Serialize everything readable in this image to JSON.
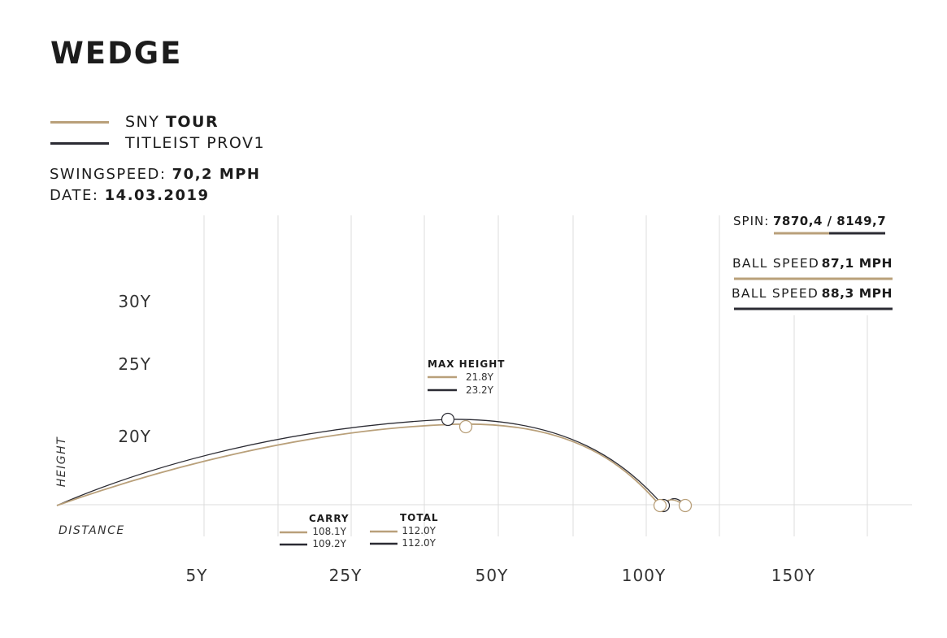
{
  "title": "WEDGE",
  "legend": [
    {
      "prefix": "SNY",
      "bold": "TOUR",
      "color": "#b9a07a"
    },
    {
      "prefix": "TITLEIST PROV1",
      "bold": "",
      "color": "#2b2b33"
    }
  ],
  "swingspeed": {
    "label": "SWINGSPEED:",
    "value": "70,2 MPH"
  },
  "date": {
    "label": "DATE:",
    "value": "14.03.2019"
  },
  "stats": {
    "spin_label": "SPIN:",
    "spin_value": "7870,4 / 8149,7",
    "ball_speed_1_label": "BALL SPEED",
    "ball_speed_1_value": "87,1 MPH",
    "ball_speed_2_label": "BALL SPEED",
    "ball_speed_2_value": "88,3 MPH"
  },
  "chart_data": {
    "type": "line",
    "xlabel": "DISTANCE",
    "ylabel": "HEIGHT",
    "x_ticks": [
      "5Y",
      "25Y",
      "50Y",
      "100Y",
      "150Y"
    ],
    "y_ticks": [
      "20Y",
      "25Y",
      "30Y"
    ],
    "grid": true,
    "series": [
      {
        "name": "SNY TOUR",
        "color": "#b9a07a",
        "max_height": "21.8Y",
        "carry": "108.1Y",
        "total": "112.0Y",
        "carry_value": 108.1,
        "total_value": 112.0,
        "max_height_value": 21.8
      },
      {
        "name": "TITLEIST PROV1",
        "color": "#2b2b33",
        "max_height": "23.2Y",
        "carry": "109.2Y",
        "total": "112.0Y",
        "carry_value": 109.2,
        "total_value": 112.0,
        "max_height_value": 23.2
      }
    ],
    "annotations": {
      "max_height_title": "MAX HEIGHT",
      "carry_title": "CARRY",
      "total_title": "TOTAL"
    }
  }
}
